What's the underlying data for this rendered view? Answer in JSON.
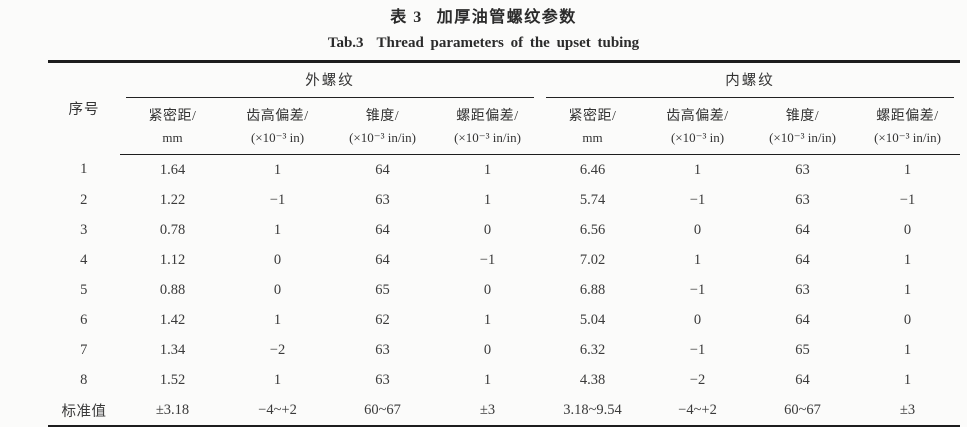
{
  "header": {
    "table_no_zh": "表 3",
    "title_zh": "加厚油管螺纹参数",
    "table_no_en": "Tab.3",
    "title_en": "Thread parameters of the upset tubing"
  },
  "table": {
    "serial_header": "序号",
    "groups": [
      {
        "label": "外螺纹",
        "columns": [
          {
            "name": "紧密距/",
            "unit": "mm"
          },
          {
            "name": "齿高偏差/",
            "unit": "(×10⁻³ in)"
          },
          {
            "name": "锥度/",
            "unit": "(×10⁻³ in/in)"
          },
          {
            "name": "螺距偏差/",
            "unit": "(×10⁻³ in/in)"
          }
        ]
      },
      {
        "label": "内螺纹",
        "columns": [
          {
            "name": "紧密距/",
            "unit": "mm"
          },
          {
            "name": "齿高偏差/",
            "unit": "(×10⁻³ in)"
          },
          {
            "name": "锥度/",
            "unit": "(×10⁻³ in/in)"
          },
          {
            "name": "螺距偏差/",
            "unit": "(×10⁻³ in/in)"
          }
        ]
      }
    ],
    "rows": [
      [
        "1",
        "1.64",
        "1",
        "64",
        "1",
        "6.46",
        "1",
        "63",
        "1"
      ],
      [
        "2",
        "1.22",
        "−1",
        "63",
        "1",
        "5.74",
        "−1",
        "63",
        "−1"
      ],
      [
        "3",
        "0.78",
        "1",
        "64",
        "0",
        "6.56",
        "0",
        "64",
        "0"
      ],
      [
        "4",
        "1.12",
        "0",
        "64",
        "−1",
        "7.02",
        "1",
        "64",
        "1"
      ],
      [
        "5",
        "0.88",
        "0",
        "65",
        "0",
        "6.88",
        "−1",
        "63",
        "1"
      ],
      [
        "6",
        "1.42",
        "1",
        "62",
        "1",
        "5.04",
        "0",
        "64",
        "0"
      ],
      [
        "7",
        "1.34",
        "−2",
        "63",
        "0",
        "6.32",
        "−1",
        "65",
        "1"
      ],
      [
        "8",
        "1.52",
        "1",
        "63",
        "1",
        "4.38",
        "−2",
        "64",
        "1"
      ],
      [
        "标准值",
        "±3.18",
        "−4~+2",
        "60~67",
        "±3",
        "3.18~9.54",
        "−4~+2",
        "60~67",
        "±3"
      ]
    ]
  }
}
